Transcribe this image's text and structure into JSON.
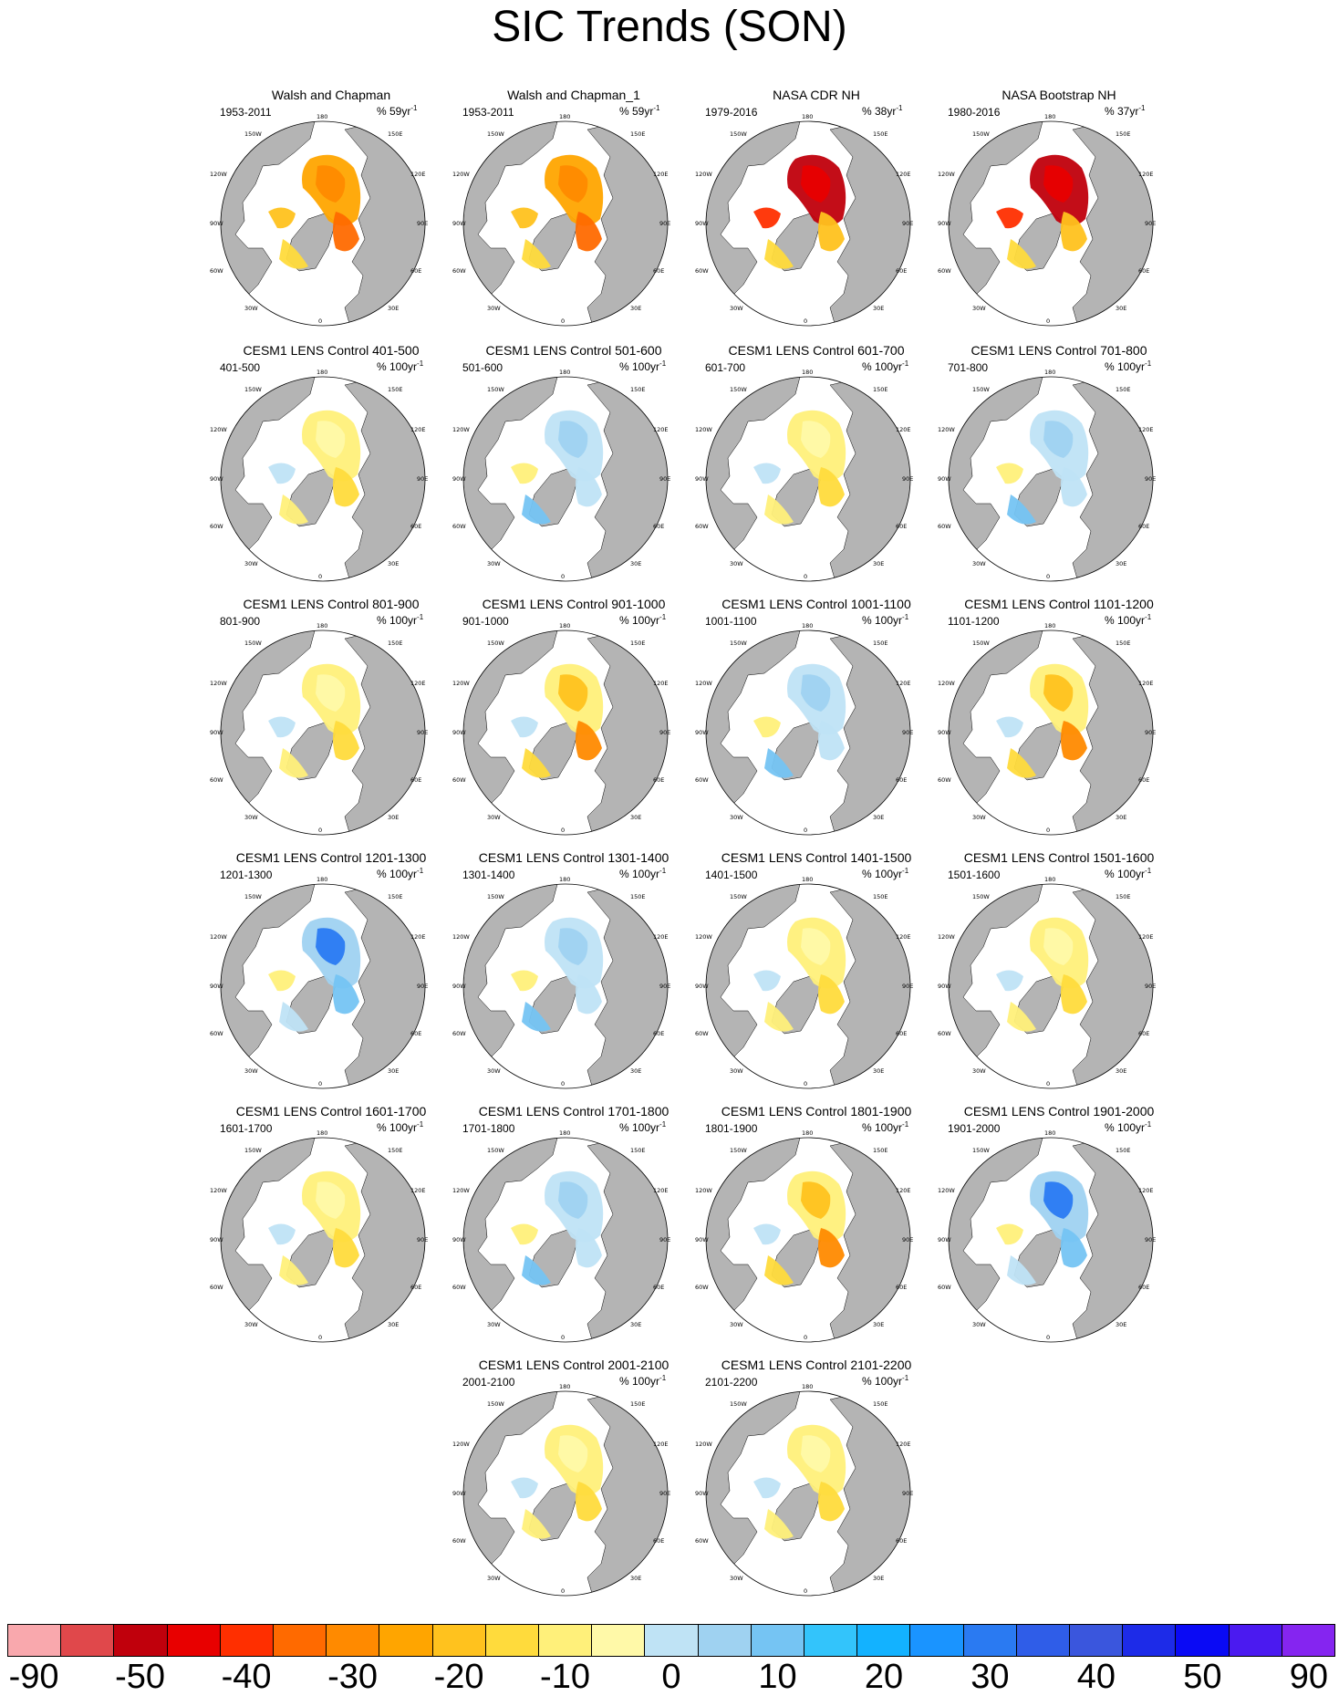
{
  "title": "SIC Trends (SON)",
  "panels": [
    {
      "title": "Walsh and Chapman",
      "period": "1953-2011",
      "units_prefix": "% 59yr",
      "units_exp": "-1",
      "pattern": "obs"
    },
    {
      "title": "Walsh and Chapman_1",
      "period": "1953-2011",
      "units_prefix": "% 59yr",
      "units_exp": "-1",
      "pattern": "obs"
    },
    {
      "title": "NASA CDR NH",
      "period": "1979-2016",
      "units_prefix": "% 38yr",
      "units_exp": "-1",
      "pattern": "sat"
    },
    {
      "title": "NASA Bootstrap NH",
      "period": "1980-2016",
      "units_prefix": "% 37yr",
      "units_exp": "-1",
      "pattern": "sat"
    },
    {
      "title": "CESM1 LENS Control 401-500",
      "period": "401-500",
      "units_prefix": "% 100yr",
      "units_exp": "-1",
      "pattern": "y"
    },
    {
      "title": "CESM1 LENS Control 501-600",
      "period": "501-600",
      "units_prefix": "% 100yr",
      "units_exp": "-1",
      "pattern": "b"
    },
    {
      "title": "CESM1 LENS Control 601-700",
      "period": "601-700",
      "units_prefix": "% 100yr",
      "units_exp": "-1",
      "pattern": "y"
    },
    {
      "title": "CESM1 LENS Control 701-800",
      "period": "701-800",
      "units_prefix": "% 100yr",
      "units_exp": "-1",
      "pattern": "b"
    },
    {
      "title": "CESM1 LENS Control 801-900",
      "period": "801-900",
      "units_prefix": "% 100yr",
      "units_exp": "-1",
      "pattern": "y"
    },
    {
      "title": "CESM1 LENS Control 901-1000",
      "period": "901-1000",
      "units_prefix": "% 100yr",
      "units_exp": "-1",
      "pattern": "yo"
    },
    {
      "title": "CESM1 LENS Control 1001-1100",
      "period": "1001-1100",
      "units_prefix": "% 100yr",
      "units_exp": "-1",
      "pattern": "b"
    },
    {
      "title": "CESM1 LENS Control 1101-1200",
      "period": "1101-1200",
      "units_prefix": "% 100yr",
      "units_exp": "-1",
      "pattern": "yo"
    },
    {
      "title": "CESM1 LENS Control 1201-1300",
      "period": "1201-1300",
      "units_prefix": "% 100yr",
      "units_exp": "-1",
      "pattern": "bb"
    },
    {
      "title": "CESM1 LENS Control 1301-1400",
      "period": "1301-1400",
      "units_prefix": "% 100yr",
      "units_exp": "-1",
      "pattern": "b"
    },
    {
      "title": "CESM1 LENS Control 1401-1500",
      "period": "1401-1500",
      "units_prefix": "% 100yr",
      "units_exp": "-1",
      "pattern": "y"
    },
    {
      "title": "CESM1 LENS Control 1501-1600",
      "period": "1501-1600",
      "units_prefix": "% 100yr",
      "units_exp": "-1",
      "pattern": "y"
    },
    {
      "title": "CESM1 LENS Control 1601-1700",
      "period": "1601-1700",
      "units_prefix": "% 100yr",
      "units_exp": "-1",
      "pattern": "y"
    },
    {
      "title": "CESM1 LENS Control 1701-1800",
      "period": "1701-1800",
      "units_prefix": "% 100yr",
      "units_exp": "-1",
      "pattern": "b"
    },
    {
      "title": "CESM1 LENS Control 1801-1900",
      "period": "1801-1900",
      "units_prefix": "% 100yr",
      "units_exp": "-1",
      "pattern": "yo"
    },
    {
      "title": "CESM1 LENS Control 1901-2000",
      "period": "1901-2000",
      "units_prefix": "% 100yr",
      "units_exp": "-1",
      "pattern": "bb"
    },
    {
      "title": "CESM1 LENS Control 2001-2100",
      "period": "2001-2100",
      "units_prefix": "% 100yr",
      "units_exp": "-1",
      "pattern": "y"
    },
    {
      "title": "CESM1 LENS Control 2101-2200",
      "period": "2101-2200",
      "units_prefix": "% 100yr",
      "units_exp": "-1",
      "pattern": "y"
    }
  ],
  "map_labels": {
    "lon_180": "180",
    "lon_150w": "150W",
    "lon_150e": "150E",
    "lon_120w": "120W",
    "lon_120e": "120E",
    "lon_90w": "90W",
    "lon_90e": "90E",
    "lon_60w": "60W",
    "lon_60e": "60E",
    "lon_30w": "30W",
    "lon_30e": "30E",
    "lon_0": "0"
  },
  "colorbar": {
    "colors": [
      "#f9a8ad",
      "#e0484b",
      "#c0000c",
      "#e80000",
      "#ff2f00",
      "#ff6a00",
      "#ff8a00",
      "#ffa500",
      "#ffc21e",
      "#ffdb3c",
      "#fff07a",
      "#fff9a8",
      "#bfe3f5",
      "#9fd2f1",
      "#75c4f3",
      "#33c4fb",
      "#13b2ff",
      "#1a94ff",
      "#2a7af2",
      "#2f5de8",
      "#3a56dd",
      "#1d2be8",
      "#0a0af5",
      "#4b1af0",
      "#8525f0"
    ],
    "labels": [
      "-90",
      "-50",
      "-40",
      "-30",
      "-20",
      "-10",
      "0",
      "10",
      "20",
      "30",
      "40",
      "50",
      "90"
    ]
  }
}
